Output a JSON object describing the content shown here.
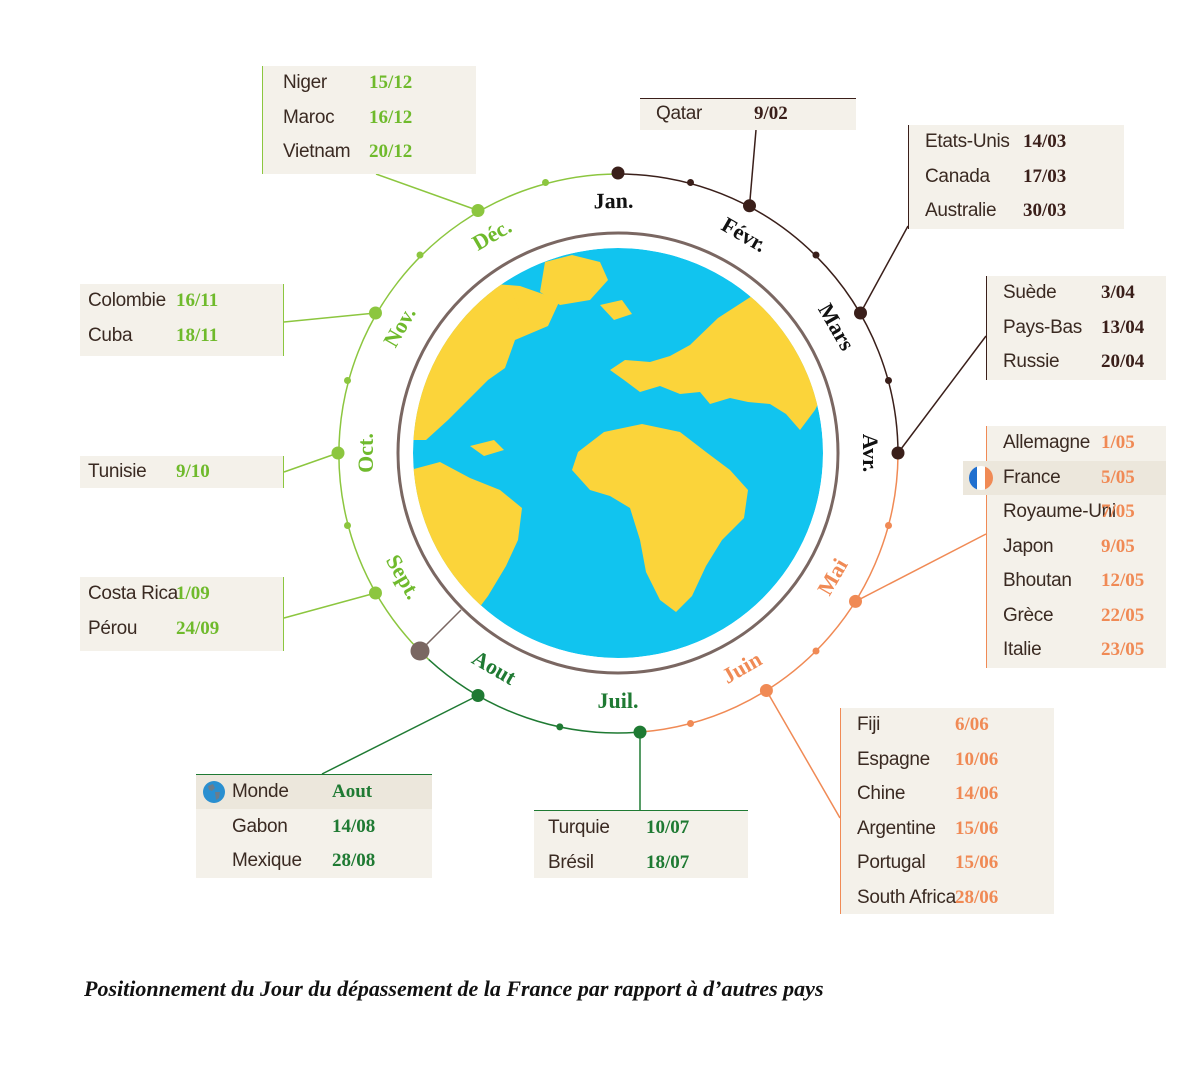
{
  "caption": "Positionnement du Jour du dépassement de la France par rapport à d’autres pays",
  "colors": {
    "black_months": "#3a1f1a",
    "green_light": "#8cc63f",
    "green_dark": "#1f7a33",
    "orange": "#f08a55",
    "ring": "#7a6762",
    "ocean": "#11c4ef",
    "land": "#fbd43a"
  },
  "months": [
    {
      "label": "Jan.",
      "color": "#111111"
    },
    {
      "label": "Févr.",
      "color": "#111111"
    },
    {
      "label": "Mars",
      "color": "#111111"
    },
    {
      "label": "Avr.",
      "color": "#111111"
    },
    {
      "label": "Mai",
      "color": "#f08a55"
    },
    {
      "label": "Juin",
      "color": "#f08a55"
    },
    {
      "label": "Juil.",
      "color": "#1f7a33"
    },
    {
      "label": "Aout",
      "color": "#1f7a33"
    },
    {
      "label": "Sept.",
      "color": "#6fba2c"
    },
    {
      "label": "Oct.",
      "color": "#6fba2c"
    },
    {
      "label": "Nov.",
      "color": "#6fba2c"
    },
    {
      "label": "Déc.",
      "color": "#6fba2c"
    }
  ],
  "groups": {
    "dec": {
      "color": "#6fba2c",
      "rows": [
        {
          "country": "Niger",
          "date": "15/12"
        },
        {
          "country": "Maroc",
          "date": "16/12"
        },
        {
          "country": "Vietnam",
          "date": "20/12"
        }
      ]
    },
    "feb": {
      "color": "#3a1f1a",
      "rows": [
        {
          "country": "Qatar",
          "date": "9/02"
        }
      ]
    },
    "mar": {
      "color": "#3a1f1a",
      "rows": [
        {
          "country": "Etats-Unis",
          "date": "14/03"
        },
        {
          "country": "Canada",
          "date": "17/03"
        },
        {
          "country": "Australie",
          "date": "30/03"
        }
      ]
    },
    "apr": {
      "color": "#3a1f1a",
      "rows": [
        {
          "country": "Suède",
          "date": "3/04"
        },
        {
          "country": "Pays-Bas",
          "date": "13/04"
        },
        {
          "country": "Russie",
          "date": "20/04"
        }
      ]
    },
    "nov": {
      "color": "#6fba2c",
      "rows": [
        {
          "country": "Colombie",
          "date": "16/11"
        },
        {
          "country": "Cuba",
          "date": "18/11"
        }
      ]
    },
    "oct": {
      "color": "#6fba2c",
      "rows": [
        {
          "country": "Tunisie",
          "date": "9/10"
        }
      ]
    },
    "may": {
      "color": "#f08a55",
      "rows": [
        {
          "country": "Allemagne",
          "date": "1/05"
        },
        {
          "country": "France",
          "date": "5/05",
          "highlight": true,
          "flag": true
        },
        {
          "country": "Royaume-Uni",
          "date": "7/05"
        },
        {
          "country": "Japon",
          "date": "9/05"
        },
        {
          "country": "Bhoutan",
          "date": "12/05"
        },
        {
          "country": "Grèce",
          "date": "22/05"
        },
        {
          "country": "Italie",
          "date": "23/05"
        }
      ]
    },
    "sep": {
      "color": "#6fba2c",
      "rows": [
        {
          "country": "Costa Rica",
          "date": "1/09"
        },
        {
          "country": "Pérou",
          "date": "24/09"
        }
      ]
    },
    "jun": {
      "color": "#f08a55",
      "rows": [
        {
          "country": "Fiji",
          "date": "6/06"
        },
        {
          "country": "Espagne",
          "date": "10/06"
        },
        {
          "country": "Chine",
          "date": "14/06"
        },
        {
          "country": "Argentine",
          "date": "15/06"
        },
        {
          "country": "Portugal",
          "date": "15/06"
        },
        {
          "country": "South Africa",
          "date": "28/06"
        }
      ]
    },
    "aug": {
      "color": "#1f7a33",
      "rows": [
        {
          "country": "Monde",
          "date": "Aout",
          "highlight": true,
          "globe": true
        },
        {
          "country": "Gabon",
          "date": "14/08"
        },
        {
          "country": "Mexique",
          "date": "28/08"
        }
      ]
    },
    "jul": {
      "color": "#1f7a33",
      "rows": [
        {
          "country": "Turquie",
          "date": "10/07"
        },
        {
          "country": "Brésil",
          "date": "18/07"
        }
      ]
    }
  }
}
